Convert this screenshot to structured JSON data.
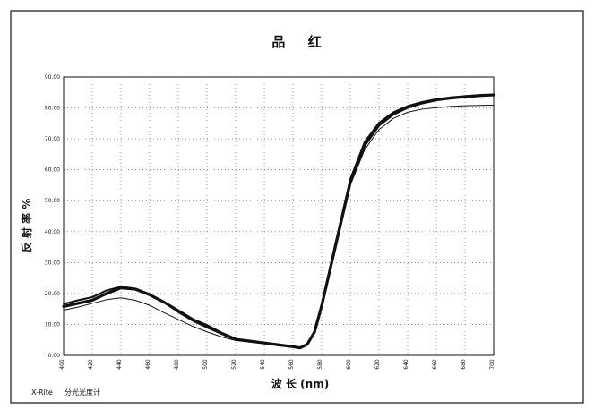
{
  "chart_data": {
    "type": "line",
    "title": "品 红",
    "xlabel": "波 长 (nm)",
    "ylabel": "反 射 率 %",
    "ylim": [
      0,
      90
    ],
    "xlim": [
      400,
      700
    ],
    "grid": true,
    "legend": "none",
    "x_ticks": [
      "400",
      "420",
      "440",
      "460",
      "480",
      "500",
      "520",
      "540",
      "560",
      "580",
      "600",
      "620",
      "640",
      "660",
      "680",
      "700"
    ],
    "y_ticks": [
      "0.00",
      "10.00",
      "20.00",
      "30.00",
      "40.00",
      "50.00",
      "60.00",
      "70.00",
      "80.00",
      "90.00"
    ],
    "series": [
      {
        "x": [
          400,
          410,
          420,
          430,
          440,
          450,
          460,
          470,
          480,
          490,
          500,
          510,
          520,
          530,
          540,
          550,
          560,
          565,
          570,
          575,
          580,
          590,
          600,
          610,
          620,
          630,
          640,
          650,
          660,
          670,
          680,
          690,
          700
        ],
        "values": [
          15.8,
          16.8,
          17.8,
          20.0,
          21.8,
          21.4,
          19.6,
          17.2,
          14.4,
          11.6,
          9.6,
          7.2,
          5.2,
          4.6,
          4.0,
          3.4,
          2.8,
          2.4,
          3.6,
          7.5,
          16.0,
          36.0,
          56.0,
          68.0,
          74.5,
          78.0,
          80.2,
          81.6,
          82.6,
          83.2,
          83.6,
          84.0,
          84.2
        ]
      },
      {
        "x": [
          400,
          410,
          420,
          430,
          440,
          450,
          460,
          470,
          480,
          490,
          500,
          510,
          520,
          530,
          540,
          550,
          560,
          565,
          570,
          575,
          580,
          590,
          600,
          610,
          620,
          630,
          640,
          650,
          660,
          670,
          680,
          690,
          700
        ],
        "values": [
          16.6,
          17.8,
          18.8,
          21.0,
          22.2,
          21.6,
          19.8,
          17.2,
          14.0,
          11.2,
          9.0,
          7.0,
          5.0,
          4.4,
          3.9,
          3.2,
          2.8,
          2.4,
          3.6,
          7.4,
          16.2,
          37.0,
          57.0,
          69.0,
          75.2,
          78.6,
          80.6,
          81.9,
          82.8,
          83.4,
          83.8,
          84.1,
          84.3
        ]
      },
      {
        "x": [
          400,
          410,
          420,
          430,
          440,
          450,
          460,
          470,
          480,
          490,
          500,
          510,
          520,
          530,
          540,
          550,
          560,
          565,
          570,
          575,
          580,
          590,
          600,
          610,
          620,
          630,
          640,
          650,
          660,
          670,
          680,
          690,
          700
        ],
        "values": [
          14.6,
          15.6,
          16.8,
          18.0,
          18.6,
          17.8,
          16.2,
          13.8,
          11.6,
          9.4,
          7.6,
          6.0,
          4.8,
          4.4,
          3.9,
          3.3,
          2.9,
          2.5,
          3.6,
          7.3,
          15.8,
          35.5,
          55.0,
          66.5,
          73.0,
          76.6,
          78.6,
          79.6,
          80.1,
          80.5,
          80.7,
          80.8,
          80.9
        ]
      }
    ]
  },
  "footer": {
    "brand": "X-Rite",
    "device": "分光光度计"
  }
}
